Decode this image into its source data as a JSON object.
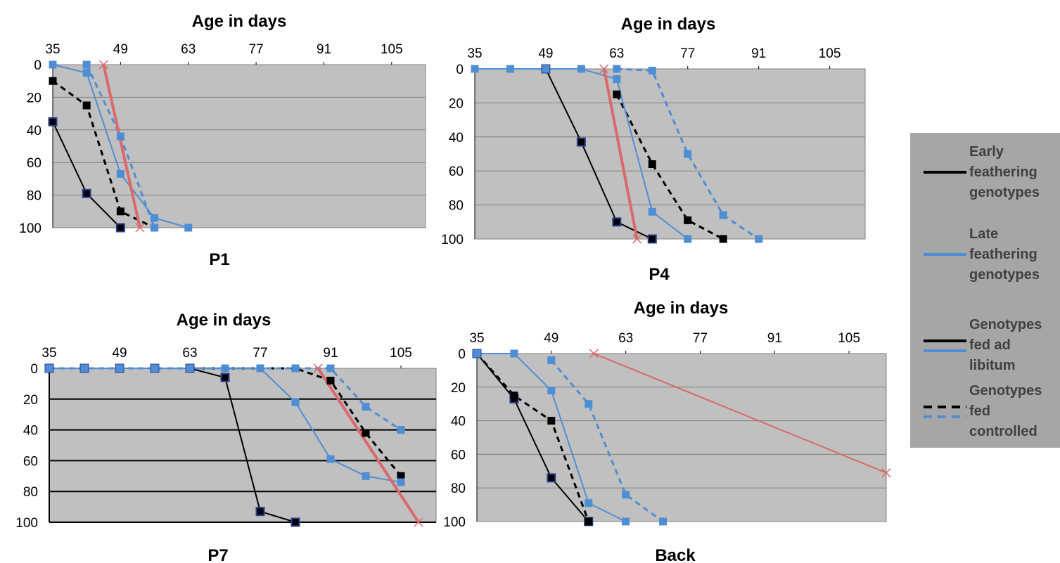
{
  "chart_data": [
    {
      "type": "line",
      "title": "P1",
      "xlabel": "Age in days",
      "ylabel": "",
      "x_ticks": [
        35,
        49,
        63,
        77,
        91,
        105
      ],
      "y_ticks": [
        0,
        20,
        40,
        60,
        80,
        100
      ],
      "xlim": [
        35,
        112
      ],
      "ylim": [
        0,
        100
      ],
      "y_inverted": true,
      "x_axis_position": "top",
      "grid": true,
      "series": [
        {
          "group": "early-adlib",
          "x": [
            35,
            42,
            49
          ],
          "y": [
            35,
            79,
            100
          ]
        },
        {
          "group": "early-controlled",
          "x": [
            35,
            42,
            49,
            56
          ],
          "y": [
            10,
            25,
            90,
            100
          ]
        },
        {
          "group": "late-adlib",
          "x": [
            35,
            42,
            49,
            56,
            63
          ],
          "y": [
            0,
            5,
            67,
            94,
            100
          ]
        },
        {
          "group": "late-controlled",
          "x": [
            42,
            49,
            56
          ],
          "y": [
            0,
            44,
            100
          ]
        },
        {
          "group": "trend",
          "x": [
            45.5,
            53
          ],
          "y": [
            0,
            100
          ]
        }
      ]
    },
    {
      "type": "line",
      "title": "P4",
      "xlabel": "Age in days",
      "ylabel": "",
      "x_ticks": [
        35,
        49,
        63,
        77,
        91,
        105
      ],
      "y_ticks": [
        0,
        20,
        40,
        60,
        80,
        100
      ],
      "xlim": [
        35,
        112
      ],
      "ylim": [
        0,
        100
      ],
      "y_inverted": true,
      "x_axis_position": "top",
      "grid": true,
      "series": [
        {
          "group": "early-adlib",
          "x": [
            49,
            56,
            63,
            70
          ],
          "y": [
            0,
            43,
            90,
            100
          ]
        },
        {
          "group": "early-controlled",
          "x": [
            63,
            70,
            77,
            84
          ],
          "y": [
            15,
            56,
            89,
            100
          ]
        },
        {
          "group": "late-adlib",
          "x": [
            35,
            42,
            49,
            56,
            63,
            70,
            77
          ],
          "y": [
            0,
            0,
            0,
            0,
            6,
            84,
            100
          ]
        },
        {
          "group": "late-controlled",
          "x": [
            63,
            70,
            77,
            84,
            91
          ],
          "y": [
            0,
            1,
            50,
            86,
            100
          ]
        },
        {
          "group": "trend",
          "x": [
            60.5,
            67
          ],
          "y": [
            0,
            100
          ]
        }
      ]
    },
    {
      "type": "line",
      "title": "P7",
      "xlabel": "Age in days",
      "ylabel": "",
      "x_ticks": [
        35,
        49,
        63,
        77,
        91,
        105
      ],
      "y_ticks": [
        0,
        20,
        40,
        60,
        80,
        100
      ],
      "xlim": [
        35,
        112
      ],
      "ylim": [
        0,
        100
      ],
      "y_inverted": true,
      "x_axis_position": "top",
      "grid": true,
      "series": [
        {
          "group": "early-adlib",
          "x": [
            35,
            42,
            49,
            56,
            63,
            70,
            77,
            84
          ],
          "y": [
            0,
            0,
            0,
            0,
            0,
            6,
            93,
            100
          ]
        },
        {
          "group": "early-controlled",
          "x": [
            63,
            70,
            77,
            84,
            91,
            98,
            105
          ],
          "y": [
            0,
            0,
            0,
            0,
            8,
            42,
            70
          ]
        },
        {
          "group": "late-adlib",
          "x": [
            35,
            42,
            49,
            56,
            63,
            70,
            77,
            84,
            91,
            98,
            105
          ],
          "y": [
            0,
            0,
            0,
            0,
            0,
            0,
            0,
            22,
            59,
            70,
            74
          ]
        },
        {
          "group": "late-controlled",
          "x": [
            35,
            42,
            49,
            56,
            63,
            70,
            77,
            84,
            91,
            98,
            105
          ],
          "y": [
            0,
            0,
            0,
            0,
            0,
            0,
            0,
            0,
            0,
            25,
            40
          ]
        },
        {
          "group": "trend",
          "x": [
            88.5,
            108.5
          ],
          "y": [
            0,
            100
          ]
        }
      ]
    },
    {
      "type": "line",
      "title": "Back",
      "xlabel": "Age in days",
      "ylabel": "",
      "x_ticks": [
        35,
        49,
        63,
        77,
        91,
        105
      ],
      "y_ticks": [
        0,
        20,
        40,
        60,
        80,
        100
      ],
      "xlim": [
        35,
        112
      ],
      "ylim": [
        0,
        100
      ],
      "y_inverted": true,
      "x_axis_position": "top",
      "grid": true,
      "series": [
        {
          "group": "early-adlib",
          "x": [
            35,
            42,
            49,
            56
          ],
          "y": [
            0,
            27,
            74,
            100
          ]
        },
        {
          "group": "early-controlled",
          "x": [
            35,
            42,
            49,
            56
          ],
          "y": [
            0,
            25,
            40,
            100
          ]
        },
        {
          "group": "late-adlib",
          "x": [
            35,
            42,
            49,
            56,
            63
          ],
          "y": [
            0,
            0,
            22,
            89,
            100
          ]
        },
        {
          "group": "late-controlled",
          "x": [
            49,
            56,
            63,
            70
          ],
          "y": [
            4,
            30,
            84,
            100
          ]
        },
        {
          "group": "trend",
          "x": [
            57,
            112
          ],
          "y": [
            0,
            71
          ]
        }
      ]
    }
  ],
  "styles": {
    "early-adlib": {
      "color": "#000000",
      "dash": false,
      "marker": "square-outlined"
    },
    "early-controlled": {
      "color": "#000000",
      "dash": true,
      "marker": "square"
    },
    "late-adlib": {
      "color": "#4f8ed4",
      "dash": false,
      "marker": "square"
    },
    "late-controlled": {
      "color": "#4f8ed4",
      "dash": true,
      "marker": "square"
    },
    "trend": {
      "color": "#d9696a",
      "dash": false,
      "marker": "x"
    }
  },
  "colors": {
    "plot_bg": "#c0c0c0",
    "legend_bg": "#a6a6a6",
    "early_line": "#000000",
    "late_line": "#4f8ed4",
    "trend_line": "#d9696a"
  },
  "legend": {
    "position": "right",
    "items": [
      {
        "lines": [
          "Early",
          "feathering",
          "genotypes"
        ],
        "swatches": [
          {
            "color": "#000000",
            "dash": false
          }
        ]
      },
      {
        "lines": [
          "Late",
          "feathering",
          "genotypes"
        ],
        "swatches": [
          {
            "color": "#4f8ed4",
            "dash": false
          }
        ]
      },
      {
        "lines": [
          "Genotypes",
          "fed ad",
          "libitum"
        ],
        "swatches": [
          {
            "color": "#000000",
            "dash": false
          },
          {
            "color": "#4f8ed4",
            "dash": false
          }
        ]
      },
      {
        "lines": [
          "Genotypes",
          "fed",
          "controlled"
        ],
        "swatches": [
          {
            "color": "#000000",
            "dash": true
          },
          {
            "color": "#4f8ed4",
            "dash": true
          }
        ]
      }
    ]
  }
}
